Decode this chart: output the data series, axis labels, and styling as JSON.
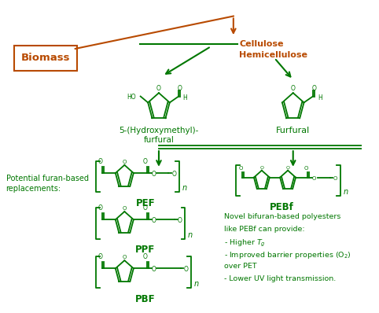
{
  "bg_color": "#ffffff",
  "green": "#007700",
  "brown": "#B84A00",
  "figsize": [
    4.82,
    3.98
  ],
  "dpi": 100,
  "biomass_label": "Biomass",
  "cellulose_label": "Cellulose",
  "hemicellulose_label": "Hemicellulose",
  "hmf_label": "5-(Hydroxymethyl)-\nfurfural",
  "furfural_label": "Furfural",
  "pef_label": "PEF",
  "ppf_label": "PPF",
  "pbf_label": "PBF",
  "pebf_label": "PEBf",
  "potential_label": "Potential furan-based\nreplacements:",
  "novel_lines": [
    "Novel bifuran-based polyesters",
    "like PEBf can provide:",
    "- Higher $T_{g}$",
    "- Improved barrier properties (O$_2$)",
    "over PET",
    "- Lower UV light transmission."
  ]
}
